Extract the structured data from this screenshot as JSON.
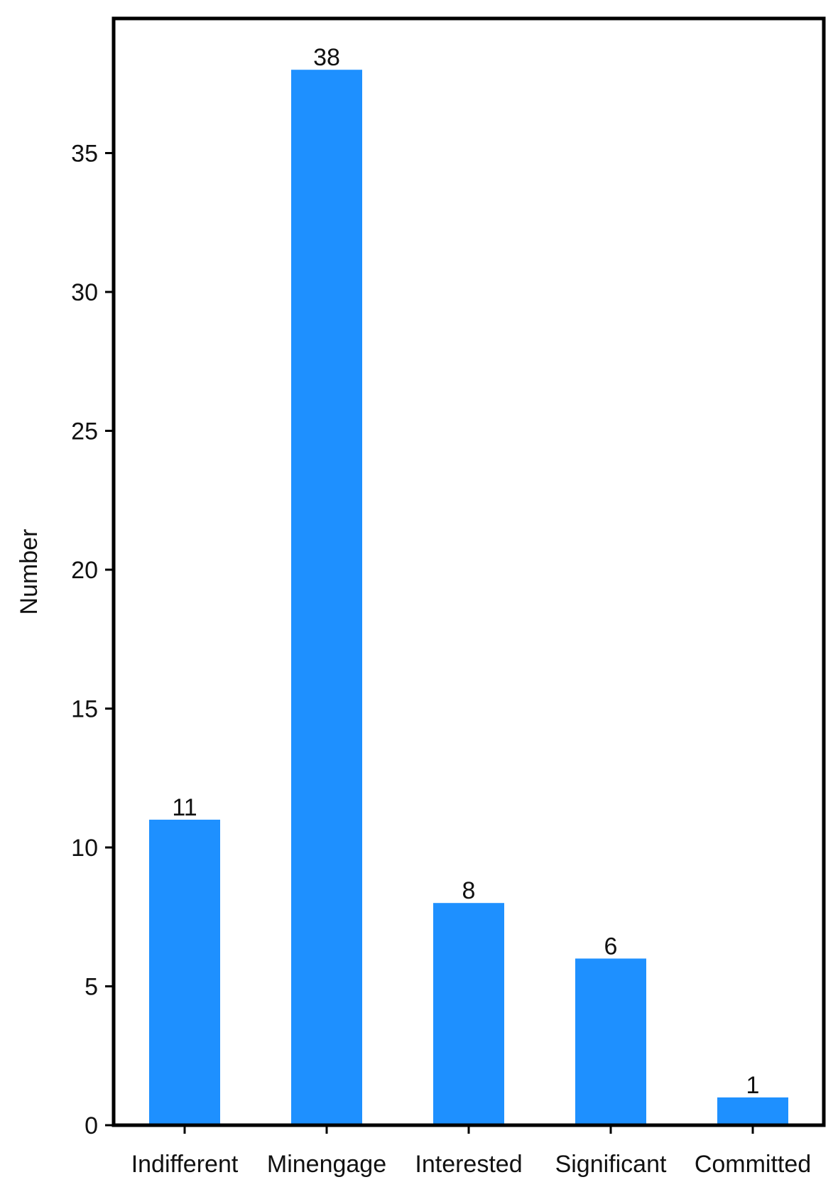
{
  "chart_data": {
    "type": "bar",
    "categories": [
      "Indifferent",
      "Minengage",
      "Interested",
      "Significant",
      "Committed"
    ],
    "values": [
      11,
      38,
      8,
      6,
      1
    ],
    "data_labels": [
      "11",
      "38",
      "8",
      "6",
      "1"
    ],
    "title": "",
    "xlabel": "",
    "ylabel": "Number",
    "ylim": [
      0,
      40
    ],
    "yticks": [
      0,
      5,
      10,
      15,
      20,
      25,
      30,
      35
    ],
    "ytick_labels": [
      "0",
      "5",
      "10",
      "15",
      "20",
      "25",
      "30",
      "35"
    ],
    "grid": false,
    "legend": "none",
    "bar_color": "#1E90FF"
  }
}
